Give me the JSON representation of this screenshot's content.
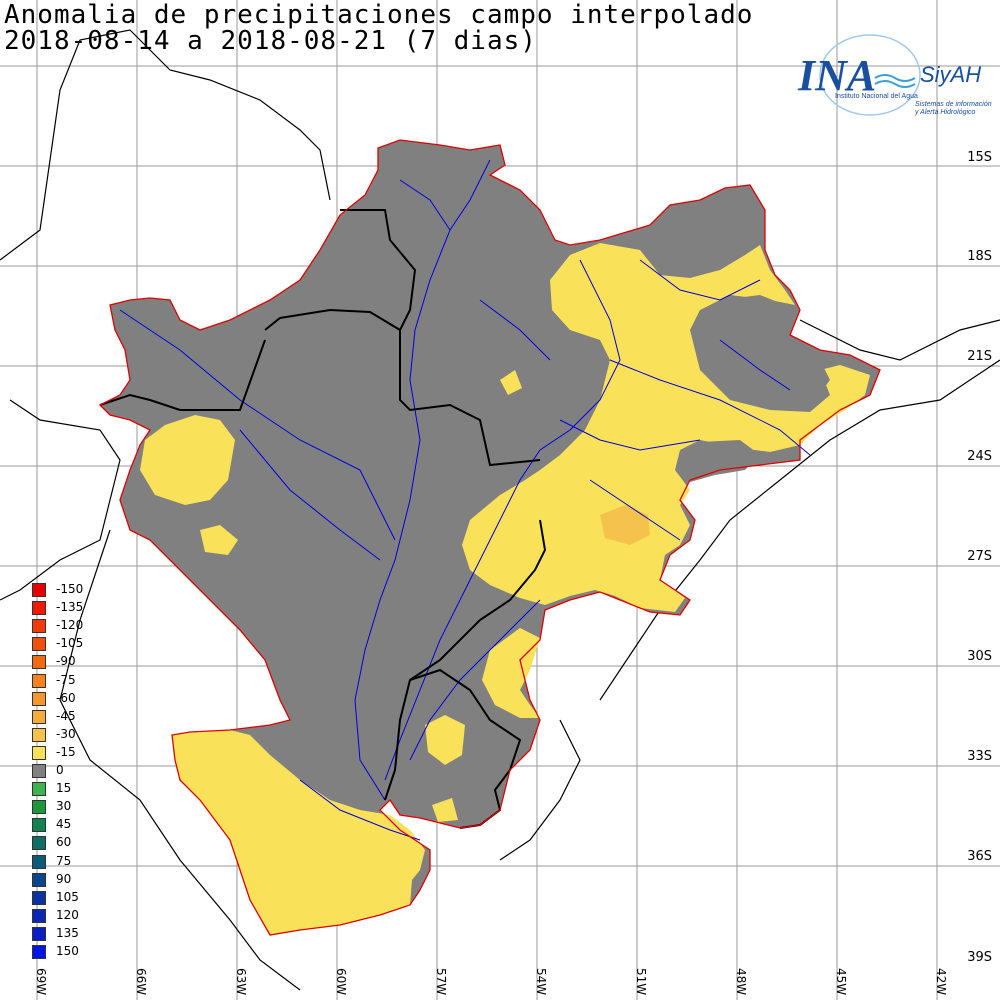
{
  "title": {
    "line1": "Anomalia de precipitaciones campo interpolado",
    "line2": "2018-08-14 a 2018-08-21 (7 dias)"
  },
  "logo": {
    "main": "INA",
    "sub": "SiyAH",
    "caption1": "Instituto Nacional del Agua",
    "caption2": "Sistemas de información",
    "caption3": "y Alerta Hidrológico",
    "color": "#1a4fa0"
  },
  "lat_labels": [
    "15S",
    "18S",
    "21S",
    "24S",
    "27S",
    "30S",
    "33S",
    "36S",
    "39S"
  ],
  "lon_labels": [
    "69W",
    "66W",
    "63W",
    "60W",
    "57W",
    "54W",
    "51W",
    "48W",
    "45W",
    "42W"
  ],
  "legend": [
    {
      "value": "-150",
      "color": "#e60000"
    },
    {
      "value": "-135",
      "color": "#f01a00"
    },
    {
      "value": "-120",
      "color": "#f03a0a"
    },
    {
      "value": "-105",
      "color": "#f0500f"
    },
    {
      "value": "-90",
      "color": "#f06a14"
    },
    {
      "value": "-75",
      "color": "#f5821e"
    },
    {
      "value": "-60",
      "color": "#f5962d"
    },
    {
      "value": "-45",
      "color": "#f5aa3c"
    },
    {
      "value": "-30",
      "color": "#f5c34b"
    },
    {
      "value": "-15",
      "color": "#fae15a"
    },
    {
      "value": "0",
      "color": "#808080"
    },
    {
      "value": "15",
      "color": "#3cb44b"
    },
    {
      "value": "30",
      "color": "#1e963c"
    },
    {
      "value": "45",
      "color": "#148250"
    },
    {
      "value": "60",
      "color": "#0f6e64"
    },
    {
      "value": "75",
      "color": "#0a5a78"
    },
    {
      "value": "90",
      "color": "#0a468c"
    },
    {
      "value": "105",
      "color": "#0a32a0"
    },
    {
      "value": "120",
      "color": "#0a28b4"
    },
    {
      "value": "135",
      "color": "#0a1ec8"
    },
    {
      "value": "150",
      "color": "#0014e6"
    }
  ],
  "colors": {
    "zero": "#808080",
    "neg15": "#fae15a",
    "neg30": "#f5c34b",
    "basin_outline": "#e00000",
    "rivers": "#0000e0",
    "borders": "#000000",
    "grid": "#9a9a9a"
  }
}
